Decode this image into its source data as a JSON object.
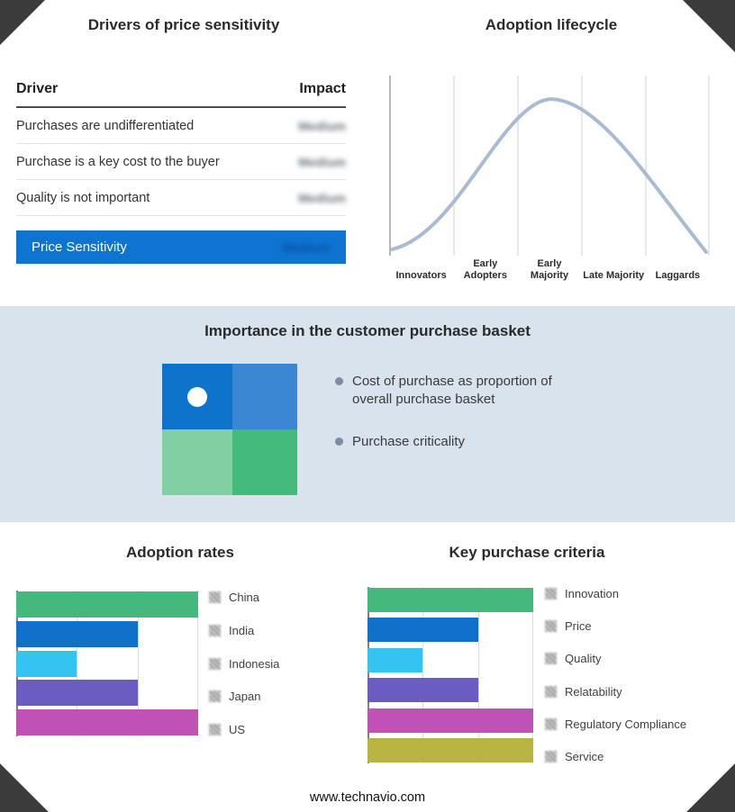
{
  "chart_data": [
    {
      "type": "table",
      "title": "Drivers of price sensitivity",
      "columns": [
        "Driver",
        "Impact"
      ],
      "rows": [
        [
          "Purchases are undifferentiated",
          "Medium"
        ],
        [
          "Purchase is a key cost to the buyer",
          "Medium"
        ],
        [
          "Quality is not important",
          "Medium"
        ]
      ],
      "summary_row": [
        "Price Sensitivity",
        "Medium"
      ],
      "summary_color": "#0e74d1",
      "note": "impact values appear blurred in the source image"
    },
    {
      "type": "line",
      "title": "Adoption lifecycle",
      "categories": [
        "Innovators",
        "Early Adopters",
        "Early Majority",
        "Late Majority",
        "Laggards"
      ],
      "series": [
        {
          "name": "adoption-bell-curve",
          "x_pct": [
            0,
            10,
            20,
            30,
            40,
            50,
            60,
            70,
            80,
            90,
            100
          ],
          "y_pct": [
            2,
            10,
            30,
            62,
            90,
            100,
            88,
            60,
            32,
            12,
            3
          ]
        }
      ],
      "curve_color": "#a9bbd3",
      "grid": "vertical dividers between lifecycle segments",
      "legend_position": "none"
    },
    {
      "type": "bar",
      "title": "Adoption rates",
      "orientation": "horizontal",
      "categories": [
        "China",
        "India",
        "Indonesia",
        "Japan",
        "US"
      ],
      "values": [
        3,
        2,
        1,
        2,
        3
      ],
      "xlim": [
        0,
        3
      ],
      "colors": [
        "#45b97d",
        "#1170c9",
        "#35c3f2",
        "#6a5cc0",
        "#c051b5"
      ],
      "grid": "vertical gridlines at each unit",
      "legend_position": "right"
    },
    {
      "type": "bar",
      "title": "Key purchase criteria",
      "orientation": "horizontal",
      "categories": [
        "Innovation",
        "Price",
        "Quality",
        "Relatability",
        "Regulatory Compliance",
        "Service"
      ],
      "values": [
        3,
        2,
        1,
        2,
        3,
        3
      ],
      "xlim": [
        0,
        3
      ],
      "colors": [
        "#45b97d",
        "#1170c9",
        "#35c3f2",
        "#6a5cc0",
        "#c051b5",
        "#b8b441"
      ],
      "grid": "vertical gridlines at each unit",
      "legend_position": "right"
    }
  ],
  "basket": {
    "title": "Importance in the customer purchase basket",
    "bullets": [
      "Cost of purchase as proportion of overall purchase basket",
      "Purchase criticality"
    ],
    "quadrant_colors": {
      "top_left": "#0d73cb",
      "top_right": "#3c87d3",
      "bottom_left": "#83cfa4",
      "bottom_right": "#44ba7d"
    },
    "band_bg": "#d9e3ee"
  },
  "footer": {
    "url": "www.technavio.com"
  }
}
